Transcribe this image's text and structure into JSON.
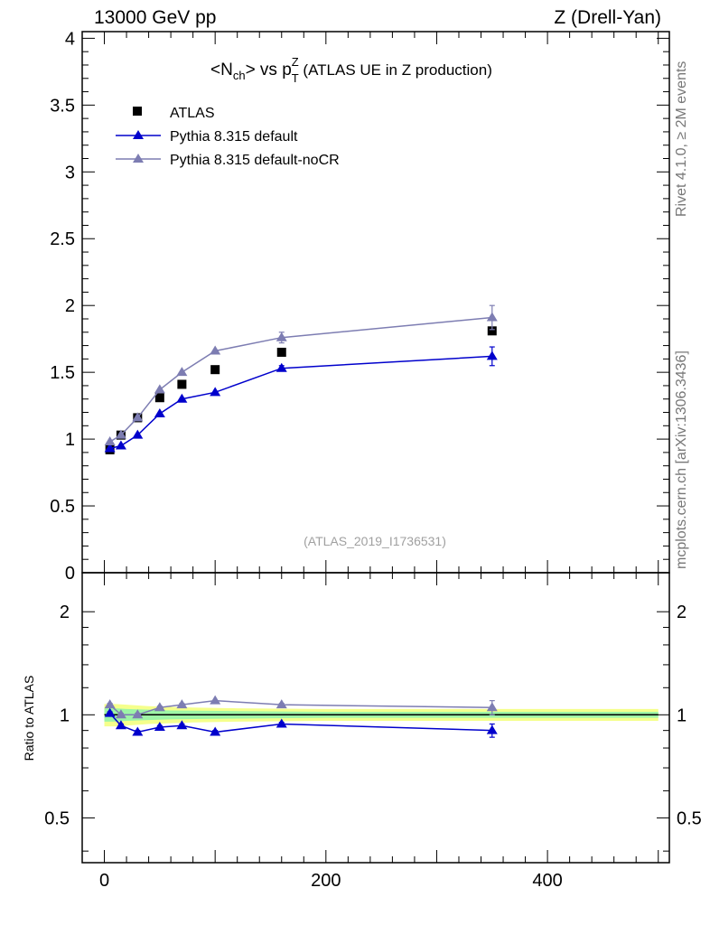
{
  "header": {
    "left": "13000 GeV pp",
    "right": "Z (Drell-Yan)"
  },
  "side_labels": {
    "rivet": "Rivet 4.1.0, ≥ 2M events",
    "mcplots": "mcplots.cern.ch [arXiv:1306.3436]"
  },
  "chart_data": [
    {
      "type": "scatter",
      "title": {
        "N": "<N",
        "ch": "ch",
        "vs": "> vs p",
        "sup": "Z",
        "sub": "T",
        "rest": " (ATLAS UE in Z production)"
      },
      "watermark": "(ATLAS_2019_I1736531)",
      "xlim": [
        -20,
        510
      ],
      "ylim": [
        0,
        4.05
      ],
      "yticks": [
        0,
        0.5,
        1,
        1.5,
        2,
        2.5,
        3,
        3.5,
        4
      ],
      "ytick_labels": [
        "0",
        "0.5",
        "1",
        "1.5",
        "2",
        "2.5",
        "3",
        "3.5",
        "4"
      ],
      "series": [
        {
          "name": "ATLAS",
          "marker": "square",
          "color": "#000000",
          "x": [
            5,
            15,
            30,
            50,
            70,
            100,
            160,
            350
          ],
          "y": [
            0.92,
            1.03,
            1.16,
            1.31,
            1.41,
            1.52,
            1.65,
            1.81
          ]
        },
        {
          "name": "Pythia 8.315 default",
          "marker": "triangle",
          "color": "#0000cc",
          "x": [
            5,
            15,
            30,
            50,
            70,
            100,
            160,
            350
          ],
          "y": [
            0.93,
            0.95,
            1.03,
            1.19,
            1.3,
            1.35,
            1.53,
            1.62
          ],
          "err": [
            0.01,
            0.01,
            0.01,
            0.01,
            0.01,
            0.01,
            0.02,
            0.07
          ]
        },
        {
          "name": "Pythia 8.315 default-noCR",
          "marker": "triangle",
          "color": "#7d7db2",
          "x": [
            5,
            15,
            30,
            50,
            70,
            100,
            160,
            350
          ],
          "y": [
            0.98,
            1.03,
            1.16,
            1.37,
            1.5,
            1.66,
            1.76,
            1.91
          ],
          "err": [
            0.01,
            0.01,
            0.01,
            0.01,
            0.01,
            0.01,
            0.04,
            0.09
          ]
        }
      ]
    },
    {
      "type": "scatter",
      "ylabel": "Ratio to ATLAS",
      "xlim": [
        -20,
        510
      ],
      "ylim": [
        0.37,
        2.6
      ],
      "log_y": true,
      "xticks": [
        0,
        200,
        400
      ],
      "xtick_labels": [
        "0",
        "200",
        "400"
      ],
      "yticks": [
        0.5,
        1,
        2
      ],
      "ytick_labels": [
        "0.5",
        "1",
        "2"
      ],
      "band": {
        "x": [
          0,
          10,
          20,
          40,
          60,
          80,
          120,
          200,
          500
        ],
        "yellow_half": [
          0.075,
          0.075,
          0.07,
          0.06,
          0.055,
          0.05,
          0.045,
          0.04,
          0.04
        ],
        "green_half": [
          0.045,
          0.045,
          0.04,
          0.035,
          0.03,
          0.028,
          0.025,
          0.02,
          0.02
        ]
      },
      "series": [
        {
          "name": "Pythia 8.315 default",
          "color": "#0000cc",
          "x": [
            5,
            15,
            30,
            50,
            70,
            100,
            160,
            350
          ],
          "y": [
            1.01,
            0.93,
            0.89,
            0.92,
            0.93,
            0.89,
            0.94,
            0.9
          ],
          "err": [
            0.01,
            0.01,
            0.01,
            0.01,
            0.01,
            0.01,
            0.01,
            0.04
          ]
        },
        {
          "name": "Pythia 8.315 default-noCR",
          "color": "#7d7db2",
          "x": [
            5,
            15,
            30,
            50,
            70,
            100,
            160,
            350
          ],
          "y": [
            1.07,
            1.0,
            1.0,
            1.05,
            1.07,
            1.1,
            1.07,
            1.05
          ],
          "err": [
            0.01,
            0.01,
            0.01,
            0.01,
            0.01,
            0.01,
            0.01,
            0.05
          ]
        }
      ]
    }
  ]
}
